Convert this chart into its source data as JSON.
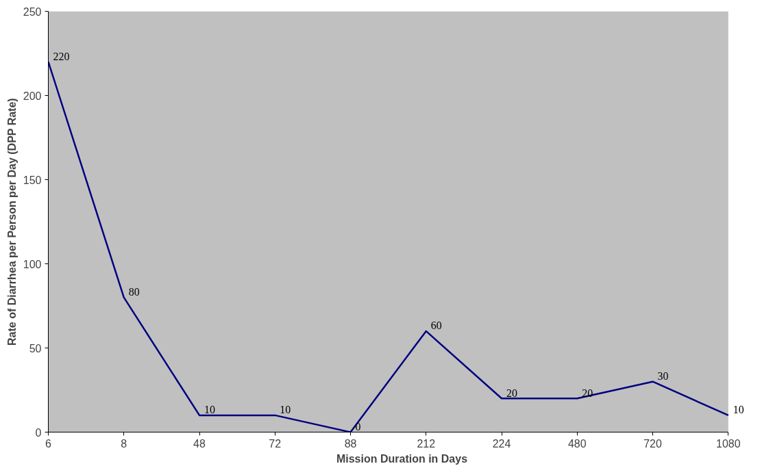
{
  "chart_data": {
    "type": "line",
    "xlabel": "Mission Duration in Days",
    "ylabel": "Rate of Diarrhea per Person per Day (DPP Rate)",
    "categories": [
      "6",
      "8",
      "48",
      "72",
      "88",
      "212",
      "224",
      "480",
      "720",
      "1080"
    ],
    "series": [
      {
        "color": "#000080",
        "values": [
          220,
          80,
          10,
          10,
          0,
          60,
          20,
          20,
          30,
          10
        ]
      }
    ],
    "ylim": [
      0,
      250
    ],
    "yticks": [
      0,
      50,
      100,
      150,
      200,
      250
    ],
    "grid": false,
    "data_labels": true,
    "marker": "none",
    "line_style": "solid"
  }
}
